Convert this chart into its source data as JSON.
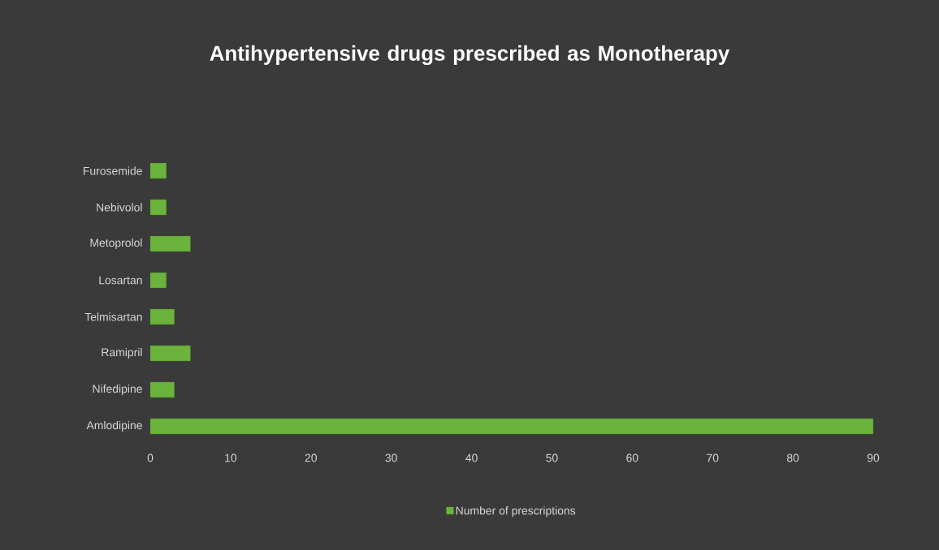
{
  "chart_data": {
    "type": "bar",
    "orientation": "horizontal",
    "title": "Antihypertensive drugs prescribed as Monotherapy",
    "categories": [
      "Furosemide",
      "Nebivolol",
      "Metoprolol",
      "Losartan",
      "Telmisartan",
      "Ramipril",
      "Nifedipine",
      "Amlodipine"
    ],
    "series": [
      {
        "name": "Number of prescriptions",
        "color": "#6bb33c",
        "values": [
          2,
          2,
          5,
          2,
          3,
          5,
          3,
          90
        ]
      }
    ],
    "xlim": [
      0,
      90
    ],
    "xticks": [
      0,
      10,
      20,
      30,
      40,
      50,
      60,
      70,
      80,
      90
    ],
    "grid": false,
    "legend": "bottom"
  }
}
